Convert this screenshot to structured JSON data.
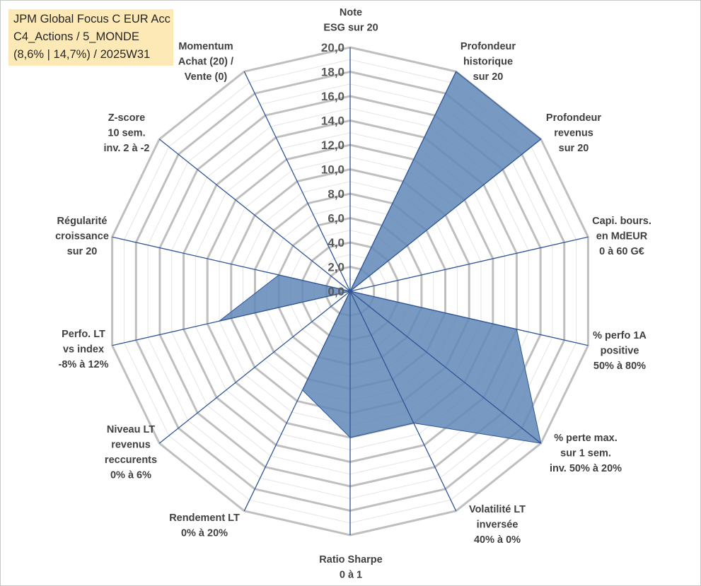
{
  "chart_data": {
    "type": "radar",
    "title_lines": [
      "JPM Global Focus C EUR Acc",
      "C4_Actions / 5_MONDE",
      "(8,6% | 14,7%) / 2025W31"
    ],
    "categories": [
      [
        "Note",
        "ESG sur 20"
      ],
      [
        "Profondeur",
        "historique",
        "sur 20"
      ],
      [
        "Profondeur",
        "revenus",
        "sur 20"
      ],
      [
        "Capi. bours.",
        "en MdEUR",
        "0 à 60 G€"
      ],
      [
        "% perfo 1A",
        "positive",
        "50% à 80%"
      ],
      [
        "% perte max.",
        "sur 1 sem.",
        "inv. 50% à 20%"
      ],
      [
        "Volatilité LT",
        "inversée",
        "40% à 0%"
      ],
      [
        "Ratio Sharpe",
        "0 à 1"
      ],
      [
        "Rendement LT",
        "0% à 20%"
      ],
      [
        "Niveau LT",
        "revenus",
        "reccurents",
        "0% à 6%"
      ],
      [
        "Perfo. LT",
        "vs index",
        "-8% à 12%"
      ],
      [
        "Régularité",
        "croissance",
        "sur 20"
      ],
      [
        "Z-score",
        "10 sem.",
        "inv. 2 à -2"
      ],
      [
        "Momentum",
        "Achat (20) /",
        "Vente (0)"
      ]
    ],
    "values": [
      0,
      20,
      20,
      0,
      14,
      20,
      12,
      12,
      9,
      0,
      11,
      6,
      0,
      0
    ],
    "rmin": 0,
    "rmax": 20,
    "ticks": [
      "0,0",
      "2,0",
      "4,0",
      "6,0",
      "8,0",
      "10,0",
      "12,0",
      "14,0",
      "16,0",
      "18,0",
      "20,0"
    ],
    "fill_color": "#5f87b7",
    "line_color": "#2f5597",
    "grid_color": "#bfbfbf",
    "legend": "none"
  }
}
